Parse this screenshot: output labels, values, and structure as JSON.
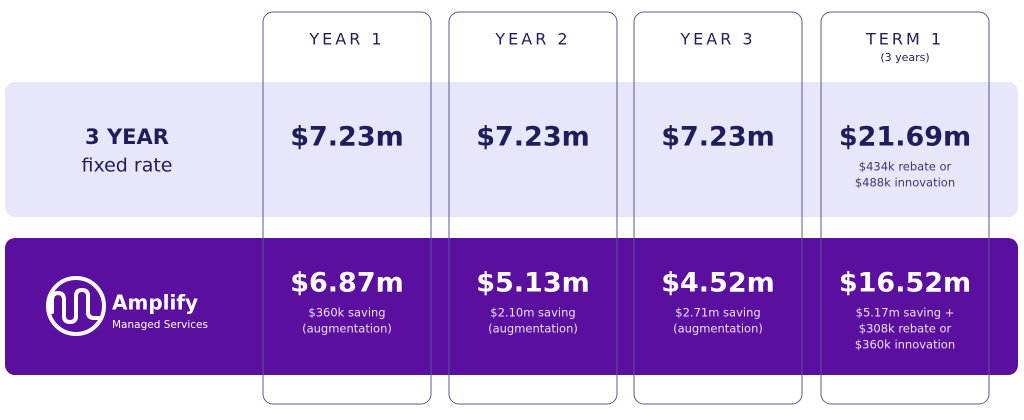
{
  "columns": [
    {
      "title": "YEAR 1"
    },
    {
      "title": "YEAR 2"
    },
    {
      "title": "YEAR 3"
    },
    {
      "title": "TERM 1",
      "subtitle": "(3 years)"
    }
  ],
  "rows": [
    {
      "label": [
        "3 YEAR",
        "fixed rate"
      ],
      "cells": [
        {
          "value": "$7.23m"
        },
        {
          "value": "$7.23m"
        },
        {
          "value": "$7.23m"
        },
        {
          "value": "$21.69m",
          "note": [
            "$434k rebate or",
            "$488k innovation"
          ]
        }
      ]
    },
    {
      "logo": {
        "name": "Amplify",
        "tagline": "Managed Services"
      },
      "cells": [
        {
          "value": "$6.87m",
          "note": [
            "$360k saving",
            "(augmentation)"
          ]
        },
        {
          "value": "$5.13m",
          "note": [
            "$2.10m saving",
            "(augmentation)"
          ]
        },
        {
          "value": "$4.52m",
          "note": [
            "$2.71m saving",
            "(augmentation)"
          ]
        },
        {
          "value": "$16.52m",
          "note": [
            "$5.17m saving +",
            "$308k rebate or",
            "$360k innovation"
          ]
        }
      ]
    }
  ]
}
